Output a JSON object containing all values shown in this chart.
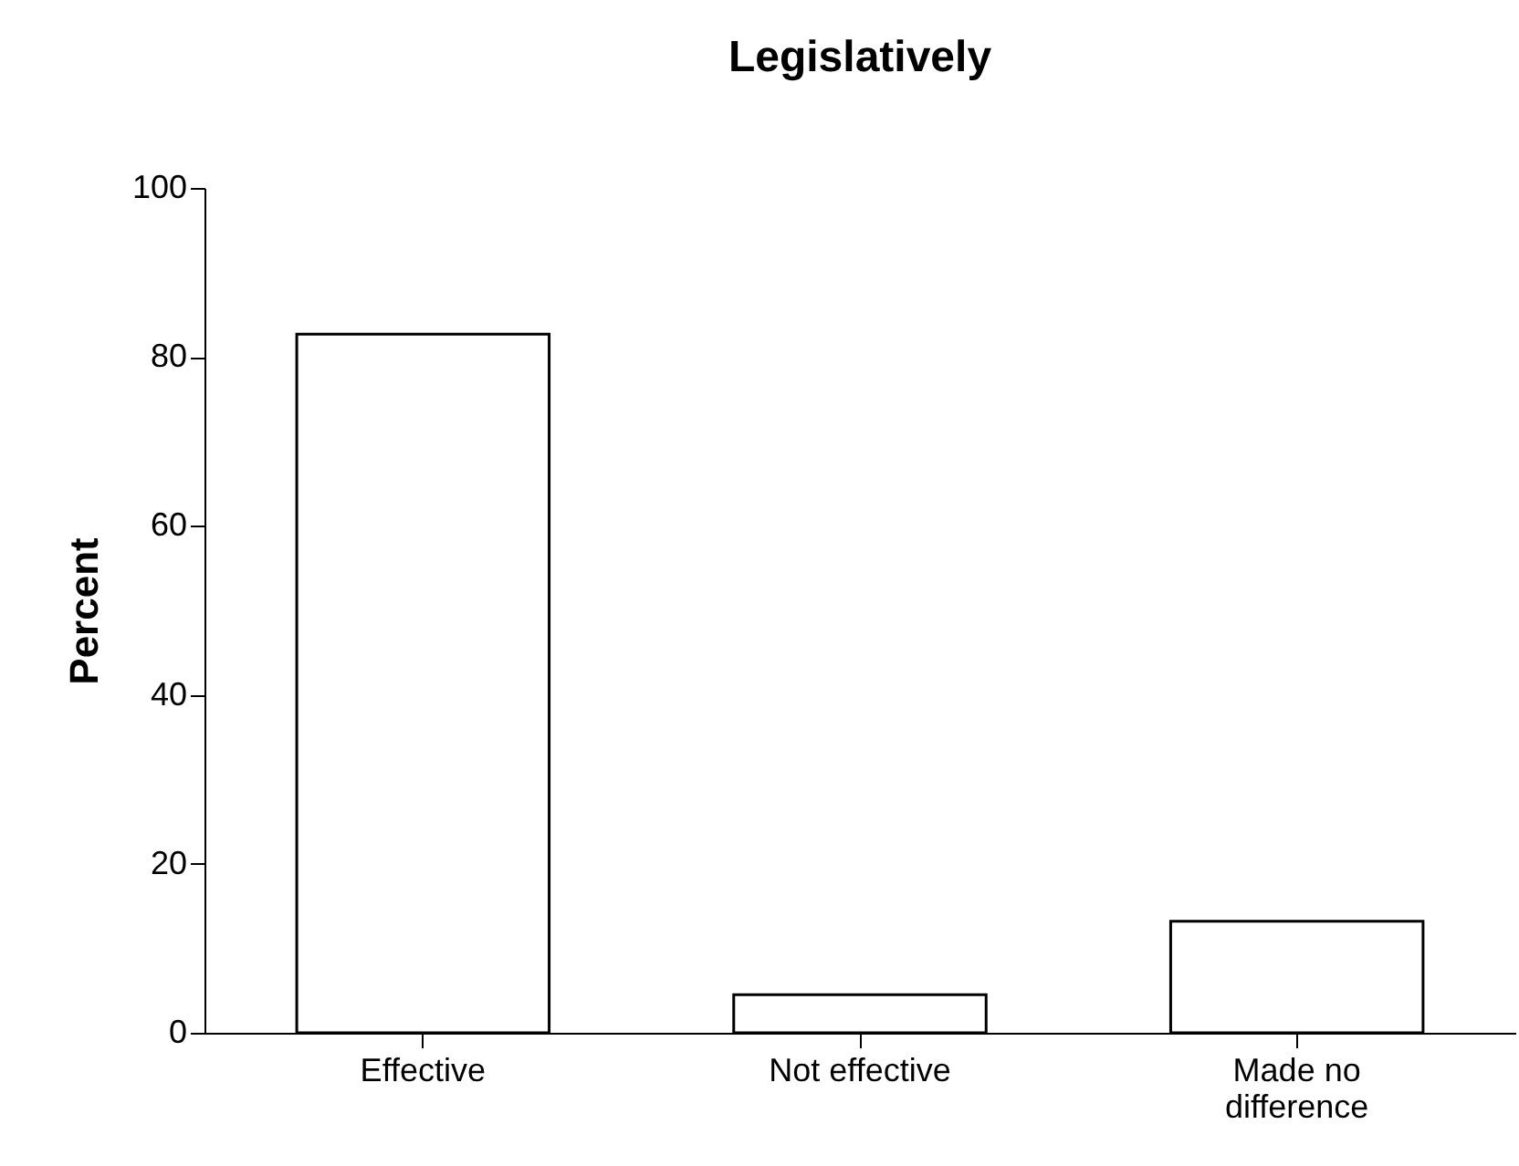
{
  "chart_data": {
    "type": "bar",
    "title": "Legislatively",
    "ylabel": "Percent",
    "categories": [
      "Effective",
      "Not effective",
      "Made no difference"
    ],
    "values": [
      82.7,
      4.5,
      13.2
    ],
    "color": "#ffffff",
    "ylim": [
      0,
      100
    ],
    "yticks": [
      0,
      20,
      40,
      60,
      80,
      100
    ],
    "grid": false
  }
}
